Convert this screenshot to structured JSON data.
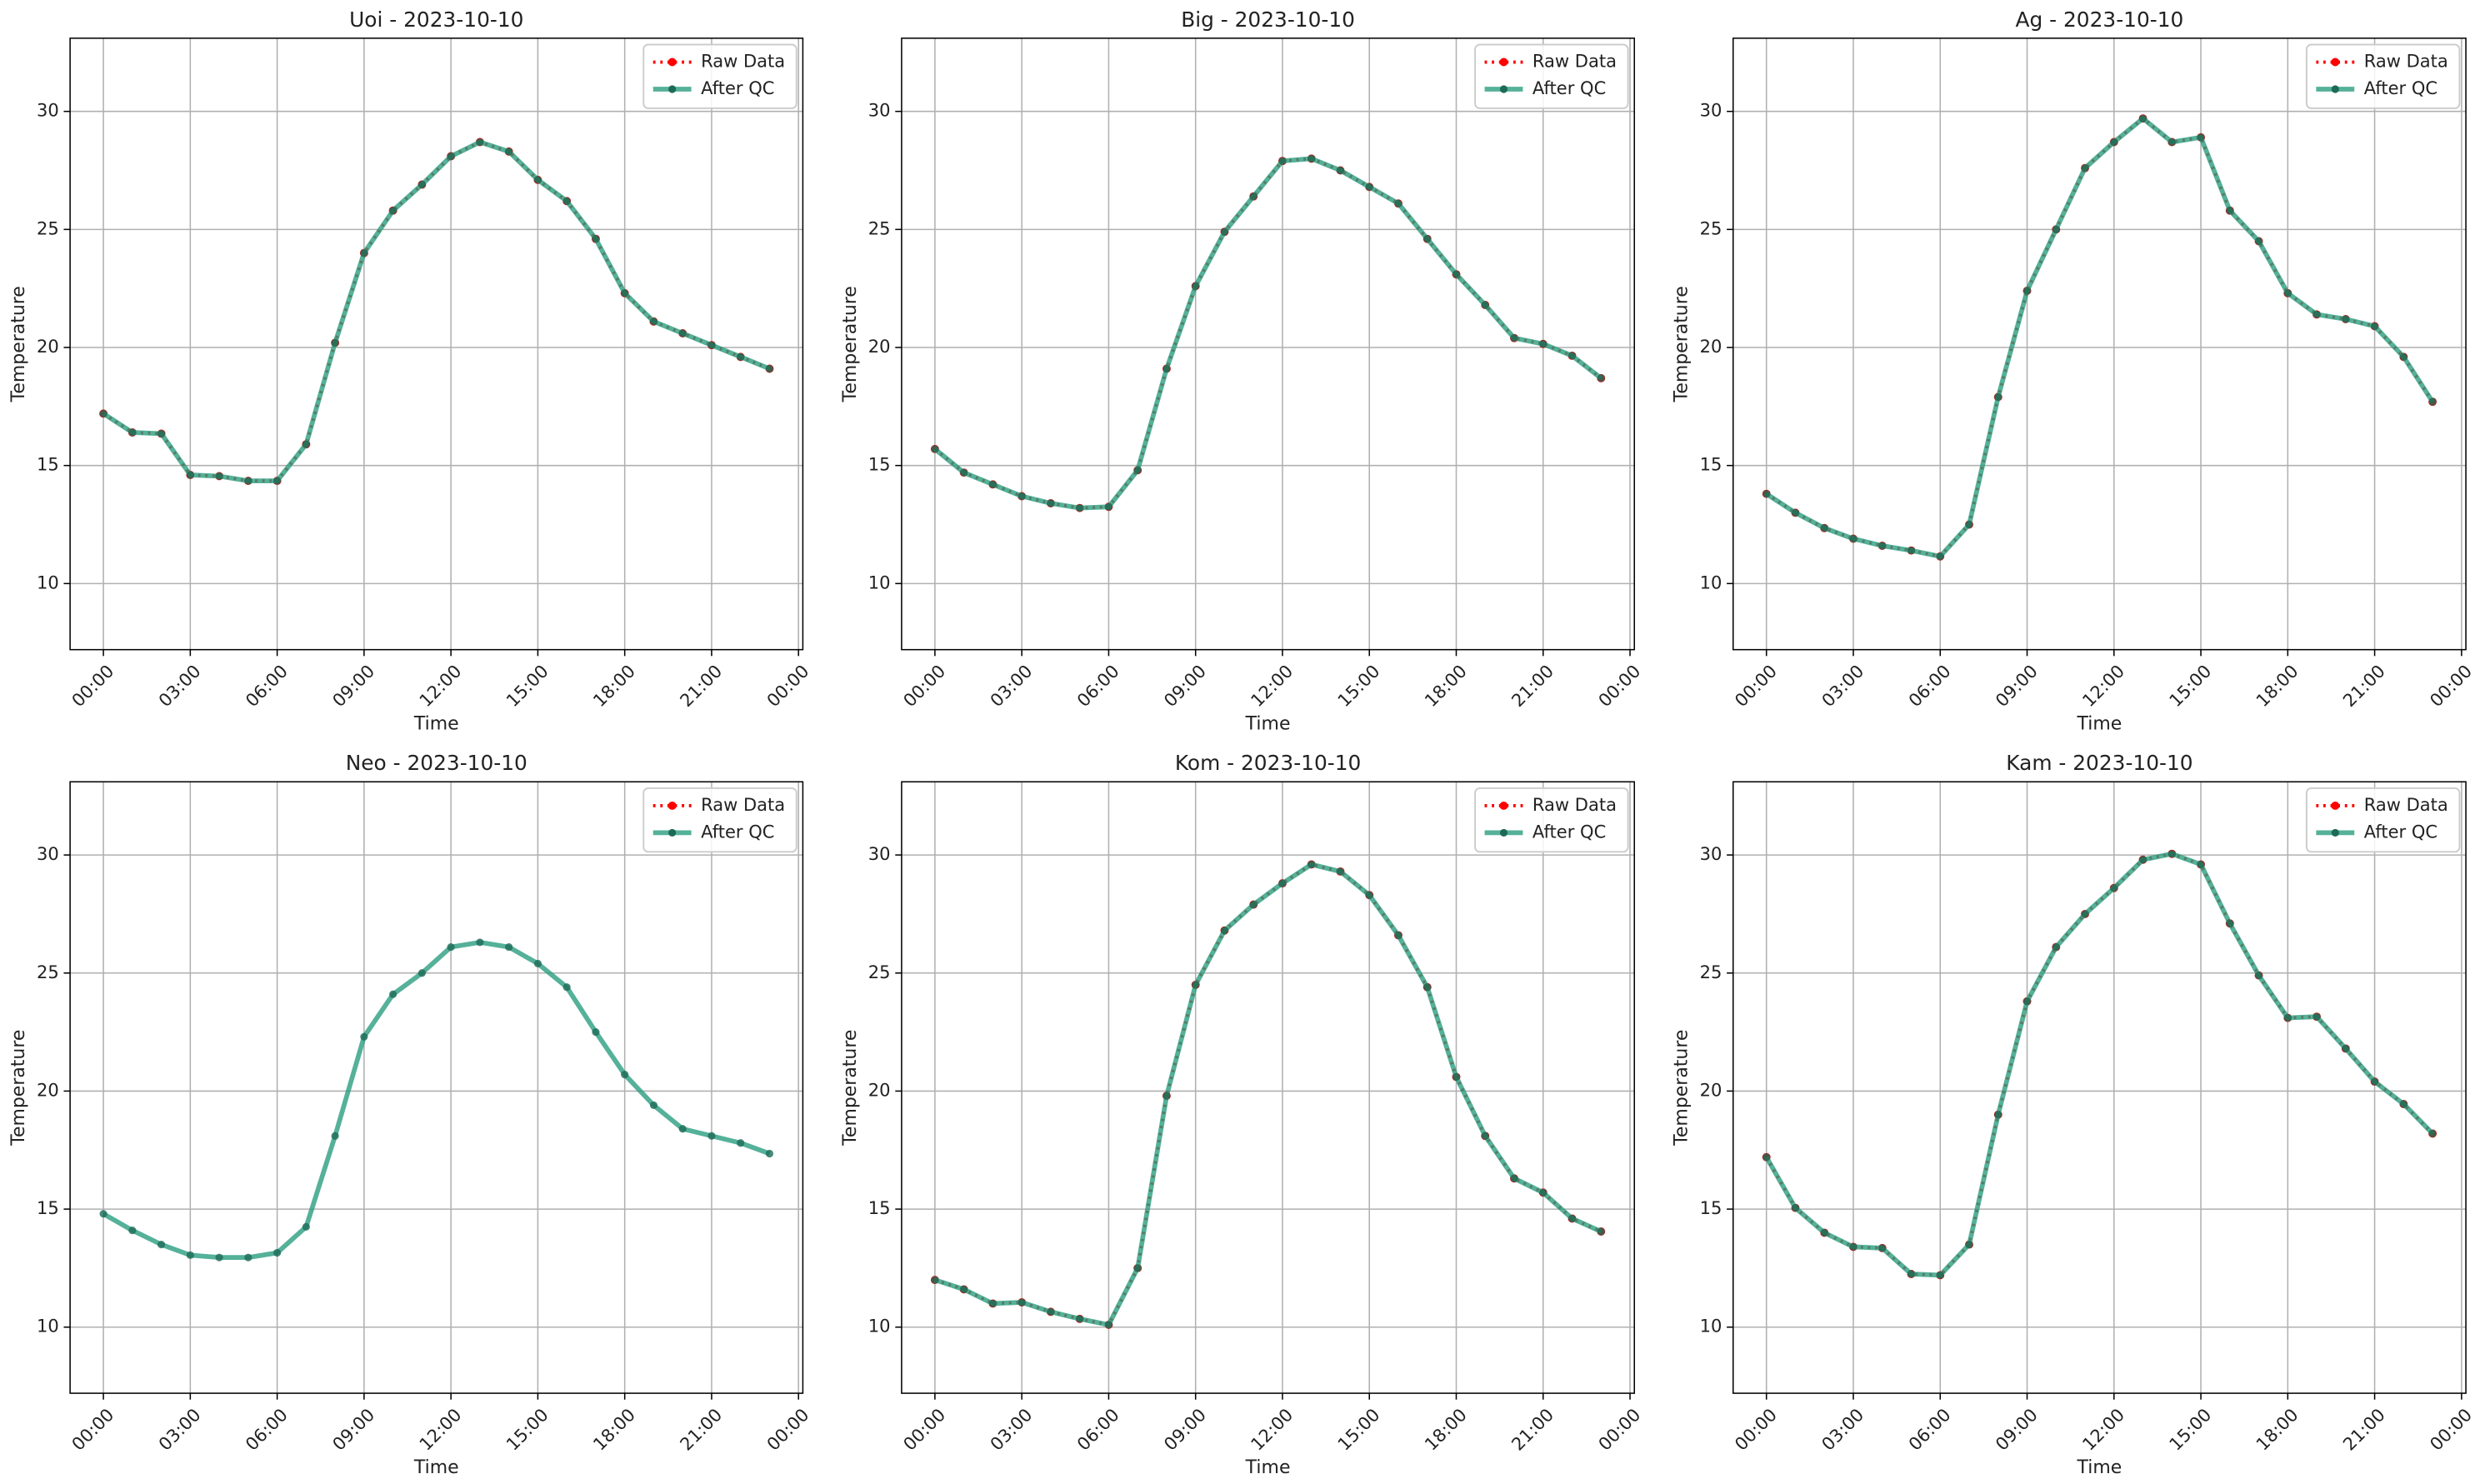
{
  "chart_data": [
    {
      "type": "line",
      "title": "Uoi - 2023-10-10",
      "xlabel": "Time",
      "ylabel": "Temperature",
      "x": [
        0,
        1,
        2,
        3,
        4,
        5,
        6,
        7,
        8,
        9,
        10,
        11,
        12,
        13,
        14,
        15,
        16,
        17,
        18,
        19,
        20,
        21,
        22,
        23
      ],
      "xlim": [
        -1.15,
        24.15
      ],
      "ylim": [
        7.2,
        33.1
      ],
      "xticks": [
        {
          "value": 0,
          "label": "00:00"
        },
        {
          "value": 3,
          "label": "03:00"
        },
        {
          "value": 6,
          "label": "06:00"
        },
        {
          "value": 9,
          "label": "09:00"
        },
        {
          "value": 12,
          "label": "12:00"
        },
        {
          "value": 15,
          "label": "15:00"
        },
        {
          "value": 18,
          "label": "18:00"
        },
        {
          "value": 21,
          "label": "21:00"
        },
        {
          "value": 24,
          "label": "00:00"
        }
      ],
      "yticks": [
        10,
        15,
        20,
        25,
        30
      ],
      "grid": true,
      "legend": "upper right",
      "series": [
        {
          "name": "Raw Data",
          "color": "#ff0000",
          "values": [
            17.2,
            16.4,
            16.35,
            14.6,
            14.55,
            14.35,
            14.35,
            15.9,
            20.2,
            24.0,
            25.8,
            26.9,
            28.1,
            28.7,
            28.3,
            27.1,
            26.2,
            24.6,
            22.3,
            21.1,
            20.6,
            20.1,
            19.6,
            19.1
          ]
        },
        {
          "name": "After QC",
          "color": "#2a9d80",
          "values": [
            17.2,
            16.4,
            16.35,
            14.6,
            14.55,
            14.35,
            14.35,
            15.9,
            20.2,
            24.0,
            25.8,
            26.9,
            28.1,
            28.7,
            28.3,
            27.1,
            26.2,
            24.6,
            22.3,
            21.1,
            20.6,
            20.1,
            19.6,
            19.1
          ]
        }
      ]
    },
    {
      "type": "line",
      "title": "Big - 2023-10-10",
      "xlabel": "Time",
      "ylabel": "Temperature",
      "x": [
        0,
        1,
        2,
        3,
        4,
        5,
        6,
        7,
        8,
        9,
        10,
        11,
        12,
        13,
        14,
        15,
        16,
        17,
        18,
        19,
        20,
        21,
        22,
        23
      ],
      "xlim": [
        -1.15,
        24.15
      ],
      "ylim": [
        7.2,
        33.1
      ],
      "xticks": [
        {
          "value": 0,
          "label": "00:00"
        },
        {
          "value": 3,
          "label": "03:00"
        },
        {
          "value": 6,
          "label": "06:00"
        },
        {
          "value": 9,
          "label": "09:00"
        },
        {
          "value": 12,
          "label": "12:00"
        },
        {
          "value": 15,
          "label": "15:00"
        },
        {
          "value": 18,
          "label": "18:00"
        },
        {
          "value": 21,
          "label": "21:00"
        },
        {
          "value": 24,
          "label": "00:00"
        }
      ],
      "yticks": [
        10,
        15,
        20,
        25,
        30
      ],
      "grid": true,
      "legend": "upper right",
      "series": [
        {
          "name": "Raw Data",
          "color": "#ff0000",
          "values": [
            15.7,
            14.7,
            14.2,
            13.7,
            13.4,
            13.2,
            13.25,
            14.8,
            19.1,
            22.6,
            24.9,
            26.4,
            27.9,
            28.0,
            27.5,
            26.8,
            26.1,
            24.6,
            23.1,
            21.8,
            20.4,
            20.15,
            19.65,
            18.7
          ]
        },
        {
          "name": "After QC",
          "color": "#2a9d80",
          "values": [
            15.7,
            14.7,
            14.2,
            13.7,
            13.4,
            13.2,
            13.25,
            14.8,
            19.1,
            22.6,
            24.9,
            26.4,
            27.9,
            28.0,
            27.5,
            26.8,
            26.1,
            24.6,
            23.1,
            21.8,
            20.4,
            20.15,
            19.65,
            18.7
          ]
        }
      ]
    },
    {
      "type": "line",
      "title": "Ag - 2023-10-10",
      "xlabel": "Time",
      "ylabel": "Temperature",
      "x": [
        0,
        1,
        2,
        3,
        4,
        5,
        6,
        7,
        8,
        9,
        10,
        11,
        12,
        13,
        14,
        15,
        16,
        17,
        18,
        19,
        20,
        21,
        22,
        23
      ],
      "xlim": [
        -1.15,
        24.15
      ],
      "ylim": [
        7.2,
        33.1
      ],
      "xticks": [
        {
          "value": 0,
          "label": "00:00"
        },
        {
          "value": 3,
          "label": "03:00"
        },
        {
          "value": 6,
          "label": "06:00"
        },
        {
          "value": 9,
          "label": "09:00"
        },
        {
          "value": 12,
          "label": "12:00"
        },
        {
          "value": 15,
          "label": "15:00"
        },
        {
          "value": 18,
          "label": "18:00"
        },
        {
          "value": 21,
          "label": "21:00"
        },
        {
          "value": 24,
          "label": "00:00"
        }
      ],
      "yticks": [
        10,
        15,
        20,
        25,
        30
      ],
      "grid": true,
      "legend": "upper right",
      "series": [
        {
          "name": "Raw Data",
          "color": "#ff0000",
          "values": [
            13.8,
            13.0,
            12.35,
            11.9,
            11.6,
            11.4,
            11.15,
            12.5,
            17.9,
            22.4,
            25.0,
            27.6,
            28.7,
            29.7,
            28.7,
            28.9,
            25.8,
            24.5,
            22.3,
            21.4,
            21.2,
            20.9,
            19.6,
            17.7
          ]
        },
        {
          "name": "After QC",
          "color": "#2a9d80",
          "values": [
            13.8,
            13.0,
            12.35,
            11.9,
            11.6,
            11.4,
            11.15,
            12.5,
            17.9,
            22.4,
            25.0,
            27.6,
            28.7,
            29.7,
            28.7,
            28.9,
            25.8,
            24.5,
            22.3,
            21.4,
            21.2,
            20.9,
            19.6,
            17.7
          ]
        }
      ]
    },
    {
      "type": "line",
      "title": "Neo - 2023-10-10",
      "xlabel": "Time",
      "ylabel": "Temperature",
      "x": [
        0,
        1,
        2,
        3,
        4,
        5,
        6,
        7,
        8,
        9,
        10,
        11,
        12,
        13,
        14,
        15,
        16,
        17,
        18,
        19,
        20,
        21,
        22,
        23
      ],
      "xlim": [
        -1.15,
        24.15
      ],
      "ylim": [
        7.2,
        33.1
      ],
      "xticks": [
        {
          "value": 0,
          "label": "00:00"
        },
        {
          "value": 3,
          "label": "03:00"
        },
        {
          "value": 6,
          "label": "06:00"
        },
        {
          "value": 9,
          "label": "09:00"
        },
        {
          "value": 12,
          "label": "12:00"
        },
        {
          "value": 15,
          "label": "15:00"
        },
        {
          "value": 18,
          "label": "18:00"
        },
        {
          "value": 21,
          "label": "21:00"
        },
        {
          "value": 24,
          "label": "00:00"
        }
      ],
      "yticks": [
        10,
        15,
        20,
        25,
        30
      ],
      "grid": true,
      "legend": "upper right",
      "series": [
        {
          "name": "Raw Data",
          "color": "#ff0000",
          "values": [
            null,
            null,
            null,
            null,
            null,
            null,
            null,
            null,
            null,
            null,
            null,
            null,
            null,
            null,
            null,
            null,
            null,
            null,
            null,
            null,
            null,
            null,
            null,
            null
          ]
        },
        {
          "name": "After QC",
          "color": "#2a9d80",
          "values": [
            14.8,
            14.1,
            13.5,
            13.05,
            12.95,
            12.95,
            13.15,
            14.25,
            18.1,
            22.3,
            24.1,
            25.0,
            26.1,
            26.3,
            26.1,
            25.4,
            24.4,
            22.5,
            20.7,
            19.4,
            18.4,
            18.1,
            17.8,
            17.35
          ]
        }
      ]
    },
    {
      "type": "line",
      "title": "Kom - 2023-10-10",
      "xlabel": "Time",
      "ylabel": "Temperature",
      "x": [
        0,
        1,
        2,
        3,
        4,
        5,
        6,
        7,
        8,
        9,
        10,
        11,
        12,
        13,
        14,
        15,
        16,
        17,
        18,
        19,
        20,
        21,
        22,
        23
      ],
      "xlim": [
        -1.15,
        24.15
      ],
      "ylim": [
        7.2,
        33.1
      ],
      "xticks": [
        {
          "value": 0,
          "label": "00:00"
        },
        {
          "value": 3,
          "label": "03:00"
        },
        {
          "value": 6,
          "label": "06:00"
        },
        {
          "value": 9,
          "label": "09:00"
        },
        {
          "value": 12,
          "label": "12:00"
        },
        {
          "value": 15,
          "label": "15:00"
        },
        {
          "value": 18,
          "label": "18:00"
        },
        {
          "value": 21,
          "label": "21:00"
        },
        {
          "value": 24,
          "label": "00:00"
        }
      ],
      "yticks": [
        10,
        15,
        20,
        25,
        30
      ],
      "grid": true,
      "legend": "upper right",
      "series": [
        {
          "name": "Raw Data",
          "color": "#ff0000",
          "values": [
            12.0,
            11.6,
            11.0,
            11.05,
            10.65,
            10.35,
            10.1,
            12.5,
            19.8,
            24.5,
            26.8,
            27.9,
            28.8,
            29.6,
            29.3,
            28.3,
            26.6,
            24.4,
            20.6,
            18.1,
            16.3,
            15.7,
            14.6,
            14.05
          ]
        },
        {
          "name": "After QC",
          "color": "#2a9d80",
          "values": [
            12.0,
            11.6,
            11.0,
            11.05,
            10.65,
            10.35,
            10.1,
            12.5,
            19.8,
            24.5,
            26.8,
            27.9,
            28.8,
            29.6,
            29.3,
            28.3,
            26.6,
            24.4,
            20.6,
            18.1,
            16.3,
            15.7,
            14.6,
            14.05
          ]
        }
      ]
    },
    {
      "type": "line",
      "title": "Kam - 2023-10-10",
      "xlabel": "Time",
      "ylabel": "Temperature",
      "x": [
        0,
        1,
        2,
        3,
        4,
        5,
        6,
        7,
        8,
        9,
        10,
        11,
        12,
        13,
        14,
        15,
        16,
        17,
        18,
        19,
        20,
        21,
        22,
        23
      ],
      "xlim": [
        -1.15,
        24.15
      ],
      "ylim": [
        7.2,
        33.1
      ],
      "xticks": [
        {
          "value": 0,
          "label": "00:00"
        },
        {
          "value": 3,
          "label": "03:00"
        },
        {
          "value": 6,
          "label": "06:00"
        },
        {
          "value": 9,
          "label": "09:00"
        },
        {
          "value": 12,
          "label": "12:00"
        },
        {
          "value": 15,
          "label": "15:00"
        },
        {
          "value": 18,
          "label": "18:00"
        },
        {
          "value": 21,
          "label": "21:00"
        },
        {
          "value": 24,
          "label": "00:00"
        }
      ],
      "yticks": [
        10,
        15,
        20,
        25,
        30
      ],
      "grid": true,
      "legend": "upper right",
      "series": [
        {
          "name": "Raw Data",
          "color": "#ff0000",
          "values": [
            17.2,
            15.05,
            14.0,
            13.4,
            13.35,
            12.25,
            12.2,
            13.5,
            19.0,
            23.8,
            26.1,
            27.5,
            28.6,
            29.8,
            30.05,
            29.6,
            27.1,
            24.9,
            23.1,
            23.15,
            21.8,
            20.4,
            19.45,
            18.2
          ]
        },
        {
          "name": "After QC",
          "color": "#2a9d80",
          "values": [
            17.2,
            15.05,
            14.0,
            13.4,
            13.35,
            12.25,
            12.2,
            13.5,
            19.0,
            23.8,
            26.1,
            27.5,
            28.6,
            29.8,
            30.05,
            29.6,
            27.1,
            24.9,
            23.1,
            23.15,
            21.8,
            20.4,
            19.45,
            18.2
          ]
        }
      ]
    }
  ]
}
